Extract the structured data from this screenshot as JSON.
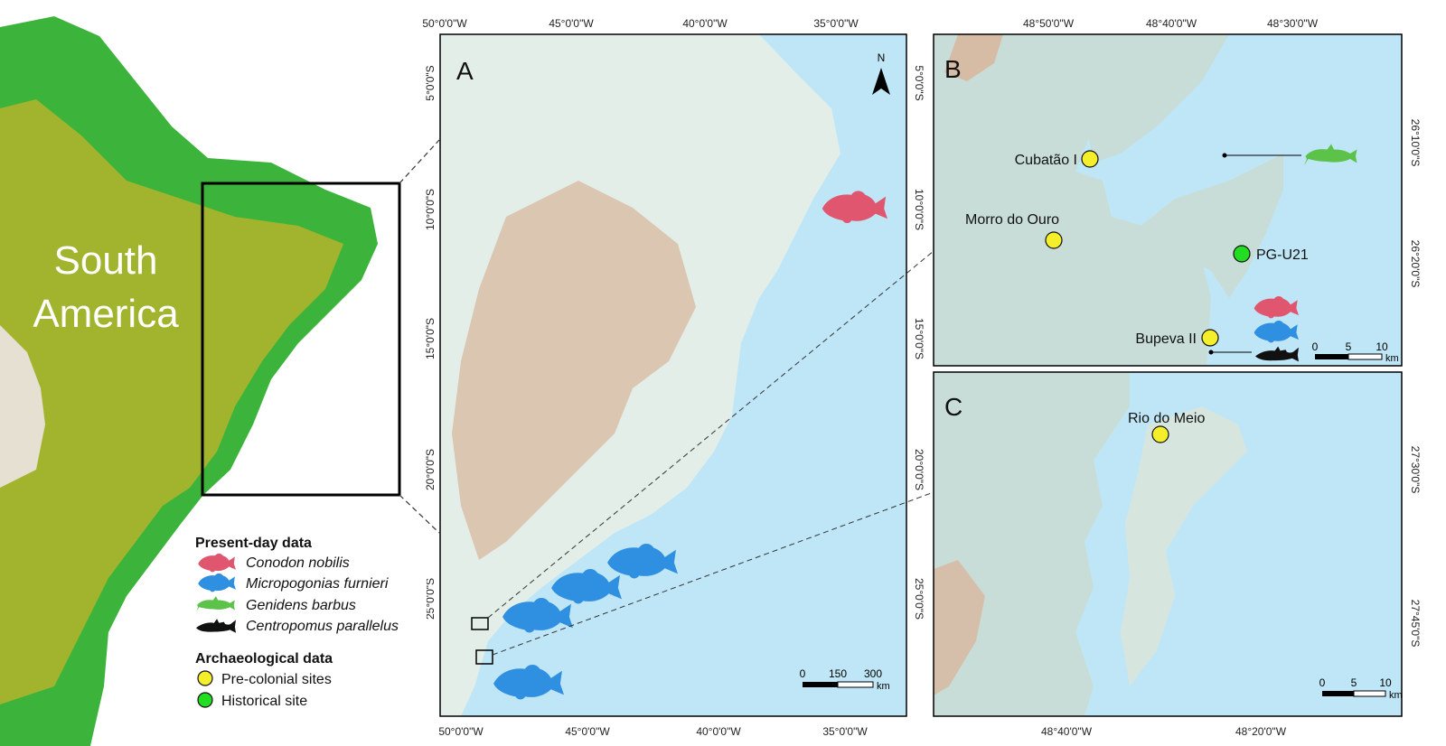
{
  "overview": {
    "continent_label_line1": "South",
    "continent_label_line2": "America"
  },
  "panel_a": {
    "letter": "A",
    "north_label": "N",
    "lon_labels": [
      "50°0'0\"W",
      "45°0'0\"W",
      "40°0'0\"W",
      "35°0'0\"W"
    ],
    "lat_labels": [
      "5°0'0\"S",
      "10°0'0\"S",
      "15°0'0\"S",
      "20°0'0\"S",
      "25°0'0\"S"
    ],
    "scale": {
      "ticks": [
        "0",
        "150",
        "300"
      ],
      "unit": "km"
    }
  },
  "panel_b": {
    "letter": "B",
    "lon_labels": [
      "48°50'0\"W",
      "48°40'0\"W",
      "48°30'0\"W"
    ],
    "lat_labels": [
      "26°10'0\"S",
      "26°20'0\"S"
    ],
    "sites": [
      {
        "name": "Cubatão I",
        "type": "pre-colonial"
      },
      {
        "name": "Morro do Ouro",
        "type": "pre-colonial"
      },
      {
        "name": "PG-U21",
        "type": "historical"
      },
      {
        "name": "Bupeva II",
        "type": "pre-colonial"
      }
    ],
    "scale": {
      "ticks": [
        "0",
        "5",
        "10"
      ],
      "unit": "km"
    }
  },
  "panel_c": {
    "letter": "C",
    "lon_labels": [
      "48°40'0\"W",
      "48°20'0\"W"
    ],
    "lat_labels": [
      "27°30'0\"S",
      "27°45'0\"S"
    ],
    "sites": [
      {
        "name": "Rio do Meio",
        "type": "pre-colonial"
      }
    ],
    "scale": {
      "ticks": [
        "0",
        "5",
        "10"
      ],
      "unit": "km"
    }
  },
  "legend": {
    "present_title": "Present-day data",
    "species": [
      {
        "name": "Conodon nobilis",
        "color": "#e0566f"
      },
      {
        "name": "Micropogonias furnieri",
        "color": "#2f8fe0"
      },
      {
        "name": "Genidens barbus",
        "color": "#5cc24a"
      },
      {
        "name": "Centropomus parallelus",
        "color": "#111111"
      }
    ],
    "arch_title": "Archaeological data",
    "arch_items": [
      {
        "name": "Pre-colonial sites",
        "color": "#f5ee2a"
      },
      {
        "name": "Historical site",
        "color": "#22dd22"
      }
    ]
  },
  "colors": {
    "sea": "#bfe6f7",
    "land_green": "#3cb43c",
    "land_yellow": "#b4b42a",
    "relief": "#d8b8a0"
  }
}
